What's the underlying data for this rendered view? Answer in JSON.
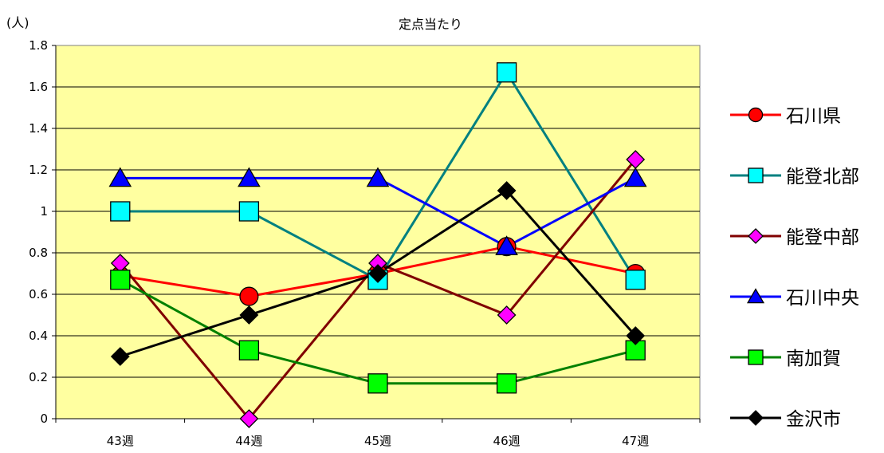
{
  "chart_data": {
    "type": "line",
    "title": "定点当たり",
    "ylabel": "(人)",
    "xlabel": "",
    "categories": [
      "43週",
      "44週",
      "45週",
      "46週",
      "47週"
    ],
    "ylim": [
      0,
      1.8
    ],
    "yticks": [
      0,
      0.2,
      0.4,
      0.6,
      0.8,
      1,
      1.2,
      1.4,
      1.6,
      1.8
    ],
    "ytick_labels": [
      "0",
      "0.2",
      "0.4",
      "0.6",
      "0.8",
      "1",
      "1.2",
      "1.4",
      "1.6",
      "1.8"
    ],
    "grid": true,
    "plot_background": "#FFFFA0",
    "legend_position": "right",
    "series": [
      {
        "name": "石川県",
        "color": "#FF0000",
        "marker": "circle",
        "marker_fill": "#FF0000",
        "values": [
          0.69,
          0.59,
          0.7,
          0.83,
          0.7
        ]
      },
      {
        "name": "能登北部",
        "color": "#008080",
        "marker": "square",
        "marker_fill": "#00FFFF",
        "values": [
          1.0,
          1.0,
          0.67,
          1.67,
          0.67
        ]
      },
      {
        "name": "能登中部",
        "color": "#800000",
        "marker": "diamond",
        "marker_fill": "#FF00FF",
        "values": [
          0.75,
          0.0,
          0.75,
          0.5,
          1.25
        ]
      },
      {
        "name": "石川中央",
        "color": "#0000FF",
        "marker": "triangle",
        "marker_fill": "#0000FF",
        "values": [
          1.16,
          1.16,
          1.16,
          0.83,
          1.16
        ]
      },
      {
        "name": "南加賀",
        "color": "#008000",
        "marker": "square",
        "marker_fill": "#00FF00",
        "values": [
          0.67,
          0.33,
          0.17,
          0.17,
          0.33
        ]
      },
      {
        "name": "金沢市",
        "color": "#000000",
        "marker": "diamond",
        "marker_fill": "#000000",
        "values": [
          0.3,
          0.5,
          0.7,
          1.1,
          0.4
        ]
      }
    ]
  }
}
